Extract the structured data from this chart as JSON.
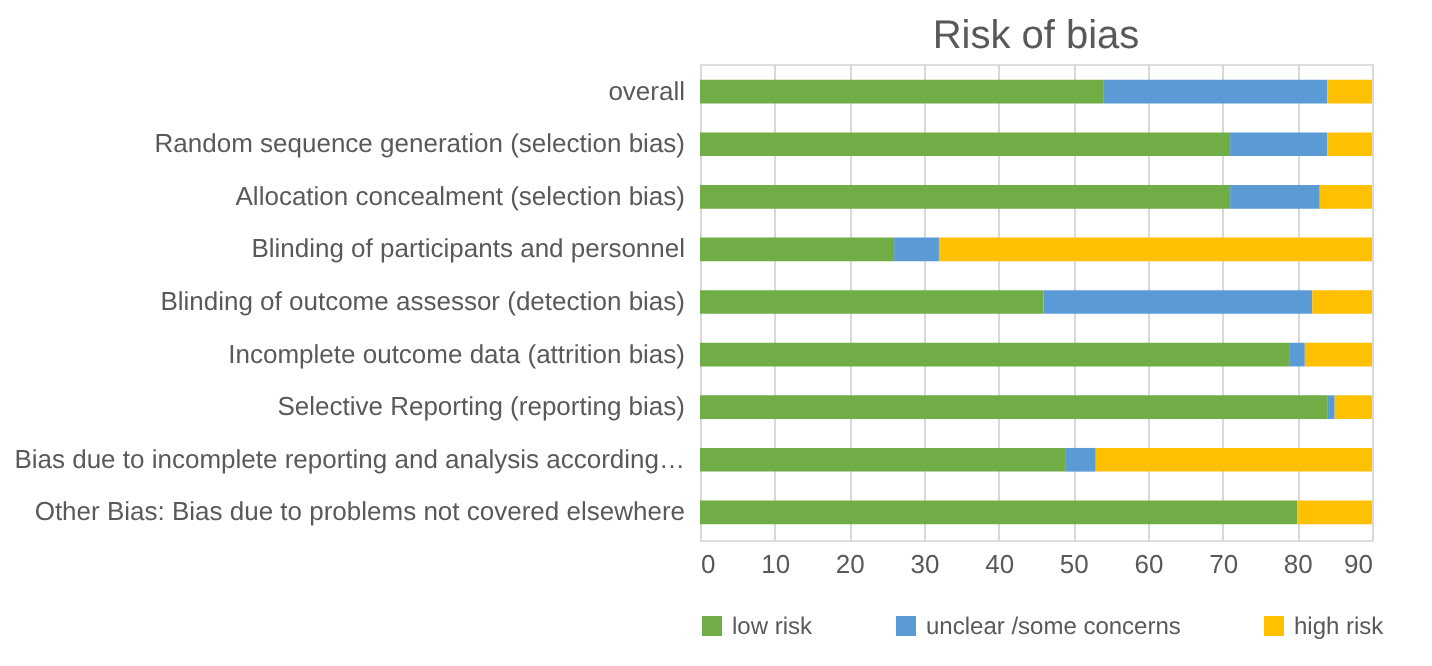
{
  "chart_data": {
    "type": "bar",
    "title": "Risk of bias",
    "orientation": "horizontal",
    "stacked": true,
    "categories": [
      "overall",
      "Random sequence generation (selection bias)",
      "Allocation concealment (selection bias)",
      "Blinding of participants and personnel",
      "Blinding of outcome assessor (detection bias)",
      "Incomplete outcome data (attrition bias)",
      "Selective Reporting (reporting bias)",
      "Bias due to incomplete reporting and analysis according…",
      "Other Bias: Bias due to problems not covered elsewhere"
    ],
    "series": [
      {
        "name": "low risk",
        "color": "#70ad47",
        "values": [
          54,
          71,
          71,
          26,
          46,
          79,
          84,
          49,
          80
        ]
      },
      {
        "name": "unclear /some concerns",
        "color": "#5b9bd5",
        "values": [
          30,
          13,
          12,
          6,
          36,
          2,
          1,
          4,
          0
        ]
      },
      {
        "name": "high risk",
        "color": "#ffc000",
        "values": [
          6,
          6,
          7,
          58,
          8,
          9,
          5,
          37,
          10
        ]
      }
    ],
    "xlim": [
      0,
      90
    ],
    "xticks": [
      0,
      10,
      20,
      30,
      40,
      50,
      60,
      70,
      80,
      90
    ],
    "grid": "x",
    "legend": "bottom"
  }
}
